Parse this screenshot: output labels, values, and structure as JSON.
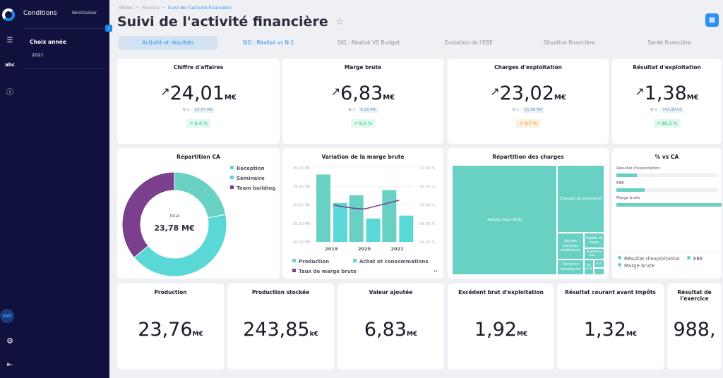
{
  "sidebar": {
    "title": "Conditions",
    "reset": "Réinitialiser",
    "filter_label": "Choix année",
    "filter_value": "2021",
    "avatar": "AW",
    "abc": "abc"
  },
  "header": {
    "breadcrumb": [
      "Allizés",
      "Finance",
      "Suivi de l'activité financière"
    ],
    "title": "Suivi de l'activité financière"
  },
  "tabs": [
    "Activité et résultats",
    "SIG : Réalisé vs N-1",
    "SIG : Réalisé VS Budget",
    "Evolution de l'EBE",
    "Situation financière",
    "Santé financière"
  ],
  "kpis": [
    {
      "title": "Chiffre d'affaires",
      "value": "24,01",
      "unit": "M€",
      "n1_label": "N-1 :",
      "n1": "22,57 M€",
      "delta": "↗ 6,4 %",
      "tone": "g"
    },
    {
      "title": "Marge brute",
      "value": "6,83",
      "unit": "M€",
      "n1_label": "N-1 :",
      "n1": "6,26 M€",
      "delta": "↗ 9,0 %",
      "tone": "g"
    },
    {
      "title": "Charges d'exploitation",
      "value": "23,02",
      "unit": "M€",
      "n1_label": "N-1 :",
      "n1": "21,98 M€",
      "delta": "↗ 4,7 %",
      "tone": "o"
    },
    {
      "title": "Résultat d'exploitation",
      "value": "1,38",
      "unit": "M€",
      "n1_label": "N-1 :",
      "n1": "741,90 k€",
      "delta": "↗ 86,3 %",
      "tone": "g"
    }
  ],
  "bottom": [
    {
      "title": "Production",
      "value": "23,76",
      "unit": "M€"
    },
    {
      "title": "Production stockée",
      "value": "243,85",
      "unit": "k€"
    },
    {
      "title": "Valeur ajoutée",
      "value": "6,83",
      "unit": "M€"
    },
    {
      "title": "Excédent brut d'exploitation",
      "value": "1,92",
      "unit": "M€"
    },
    {
      "title": "Résultat courant avant impôts",
      "value": "1,32",
      "unit": "M€"
    },
    {
      "title": "Résultat de l'exercice",
      "value": "988,",
      "unit": ""
    }
  ],
  "repartition_ca": {
    "title": "Répartition CA",
    "total_label": "Total",
    "total": "23,78 M€"
  },
  "marge": {
    "title": "Variation de la marge brute",
    "more": "••"
  },
  "charges": {
    "title": "Répartition des charges",
    "cells": [
      "Achats (sauf 603)",
      "Charges de personnel",
      "Autres services extérieurs",
      "Impôts et taxes",
      "Dotations aux ...",
      "Services extérieurs",
      "Var. stock",
      "Aut.",
      "..."
    ]
  },
  "pct": {
    "title": "% vs CA"
  },
  "colors": {
    "teal": "#68d1c4",
    "cyan": "#5ad8d8",
    "purple": "#7b3f8e",
    "blue": "#2d8ff0",
    "navy": "#10123d"
  },
  "chart_data": [
    {
      "type": "pie",
      "title": "Répartition CA",
      "categories": [
        "Reception",
        "Séminaire",
        "Team building"
      ],
      "values": [
        22,
        42,
        36
      ],
      "colors": [
        "#68d1c4",
        "#5ad8d8",
        "#7b3f8e"
      ]
    },
    {
      "type": "bar",
      "title": "Variation de la marge brute",
      "categories": [
        "2019",
        "2020",
        "2021"
      ],
      "series": [
        {
          "name": "Production",
          "values": [
            28.2,
            22.6,
            24.0
          ],
          "color": "#68d1c4"
        },
        {
          "name": "Achat et consommations",
          "values": [
            20.5,
            16.3,
            17.1
          ],
          "color": "#5ad8d8"
        },
        {
          "name": "Taux de marge brute",
          "type": "line",
          "axis": "right",
          "values": [
            28.0,
            27.6,
            28.5
          ],
          "color": "#7b3f8e"
        }
      ],
      "ylim": [
        10,
        30
      ],
      "yticks": [
        "10,00 M€",
        "15,00 M€",
        "20,00 M€",
        "25,00 M€",
        "30,00 M€"
      ],
      "y2lim": [
        24,
        32
      ],
      "y2ticks": [
        "24,00 %",
        "26,00 %",
        "28,00 %",
        "30,00 %",
        "32,00 %"
      ]
    },
    {
      "type": "bar",
      "title": "% vs CA",
      "categories": [
        "Résultat d'exploitation",
        "EBE",
        "Marge brute"
      ],
      "values": [
        5.7,
        8.0,
        28.4
      ],
      "xlim": [
        0,
        28.4
      ]
    }
  ]
}
